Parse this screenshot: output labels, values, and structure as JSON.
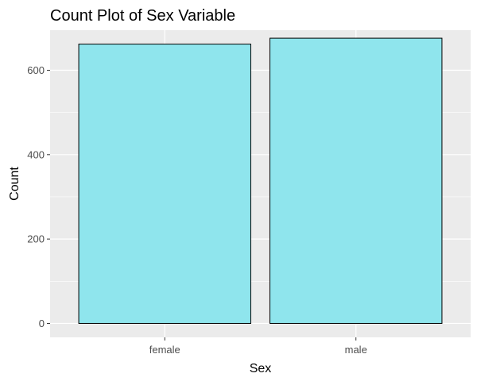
{
  "chart_data": {
    "type": "bar",
    "title": "Count Plot of Sex Variable",
    "xlabel": "Sex",
    "ylabel": "Count",
    "categories": [
      "female",
      "male"
    ],
    "values": [
      662,
      676
    ],
    "ylim": [
      -33,
      695
    ],
    "yticks": [
      0,
      200,
      400,
      600
    ],
    "ytick_labels": [
      "0",
      "200",
      "400",
      "600"
    ],
    "grid": true,
    "legend": "none",
    "colors": {
      "panel_background": "#ebebeb",
      "grid": "#ffffff",
      "bar_fill": "#8fe5ed",
      "bar_outline": "#000000",
      "tick_mark": "#333333"
    }
  }
}
